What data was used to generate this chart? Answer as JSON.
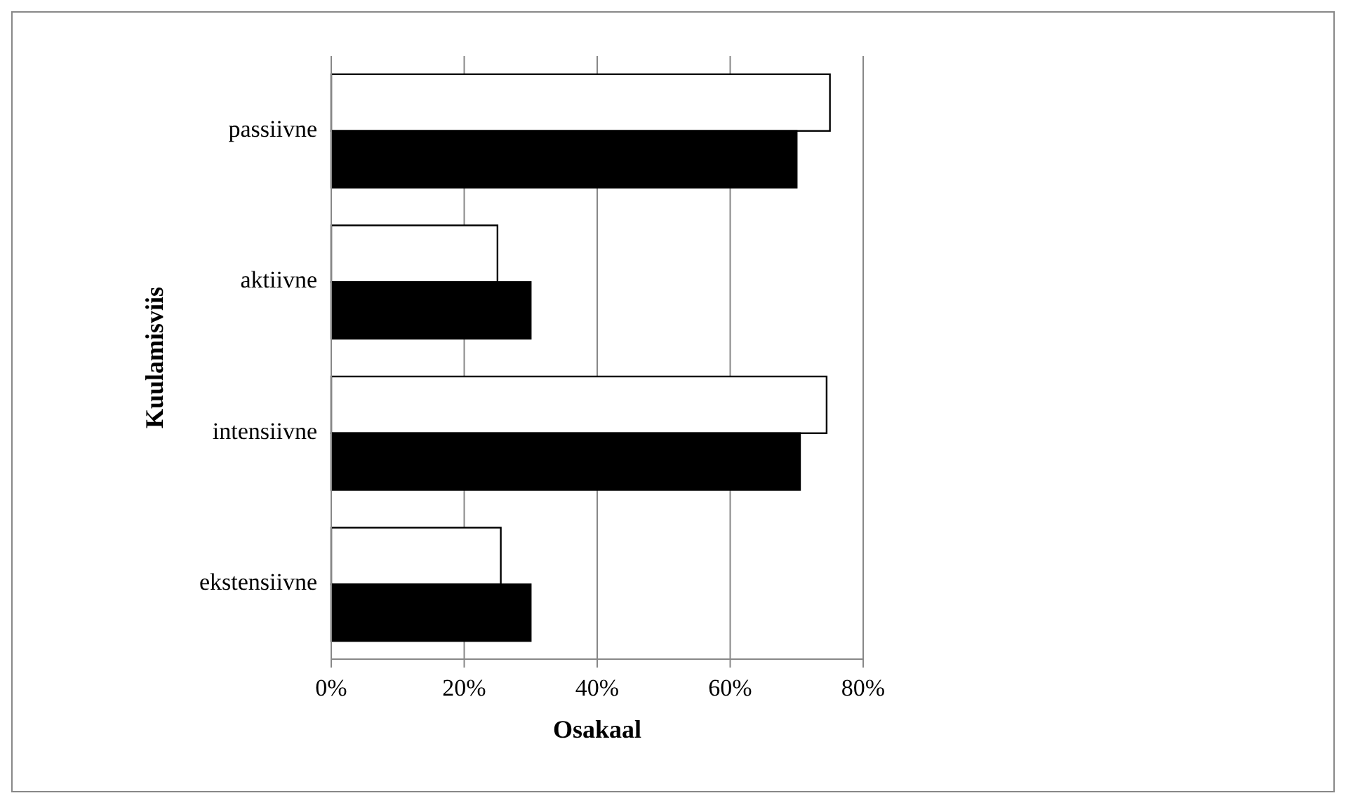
{
  "chart_data": {
    "type": "bar",
    "orientation": "horizontal",
    "xlabel": "Osakaal",
    "ylabel": "Kuulamisviis",
    "categories": [
      "passiivne",
      "aktiivne",
      "intensiivne",
      "ekstensiivne"
    ],
    "series": [
      {
        "color": "#ffffff",
        "values": [
          75,
          25,
          74.5,
          25.5
        ]
      },
      {
        "color": "#000000",
        "values": [
          70,
          30,
          70.5,
          30
        ]
      }
    ],
    "xlim": [
      0,
      80
    ],
    "xticks": [
      {
        "value": 0,
        "label": "0%"
      },
      {
        "value": 20,
        "label": "20%"
      },
      {
        "value": 40,
        "label": "40%"
      },
      {
        "value": 60,
        "label": "60%"
      },
      {
        "value": 80,
        "label": "80%"
      }
    ],
    "grid": "x"
  }
}
